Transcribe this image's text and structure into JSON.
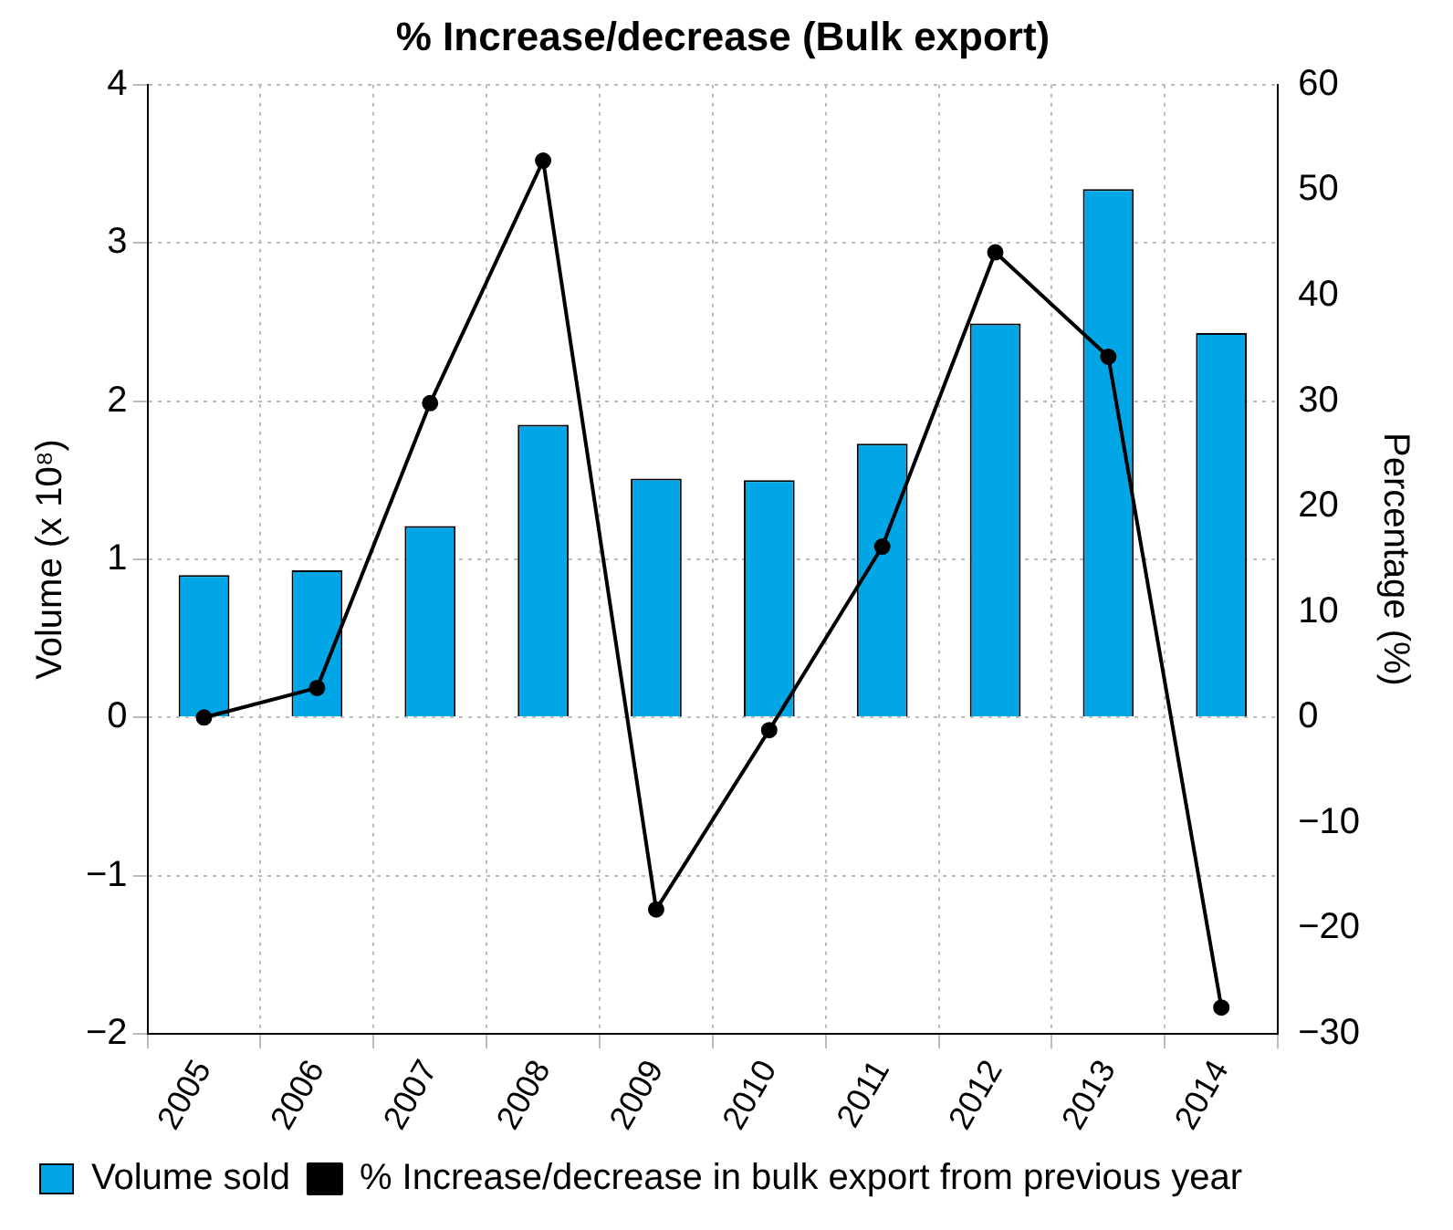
{
  "chart_data": {
    "type": "bar",
    "title": "% Increase/decrease (Bulk export)",
    "ylabel": "Volume (x 10⁸)",
    "y2label": "Percentage (%)",
    "categories": [
      "2005",
      "2006",
      "2007",
      "2008",
      "2009",
      "2010",
      "2011",
      "2012",
      "2013",
      "2014"
    ],
    "series": [
      {
        "name": "Volume sold",
        "color": "#00a6e6",
        "values": [
          0.9,
          0.93,
          1.21,
          1.85,
          1.51,
          1.5,
          1.73,
          2.49,
          3.34,
          2.43
        ]
      },
      {
        "name": "% Increase/decrease in bulk export from previous year",
        "type": "line",
        "axis": "y2",
        "color": "#000000",
        "marker": "circle",
        "values": [
          0,
          2.8,
          29.8,
          52.8,
          -18.2,
          -1.2,
          16.2,
          44.1,
          34.2,
          -27.5
        ]
      }
    ],
    "ylim": [
      -2,
      4
    ],
    "yticks": [
      -2,
      -1,
      0,
      1,
      2,
      3,
      4
    ],
    "y2lim": [
      -30,
      60
    ],
    "y2ticks": [
      -30,
      -20,
      -10,
      0,
      10,
      20,
      30,
      40,
      50,
      60
    ],
    "grid": true,
    "legend": "bottom"
  }
}
